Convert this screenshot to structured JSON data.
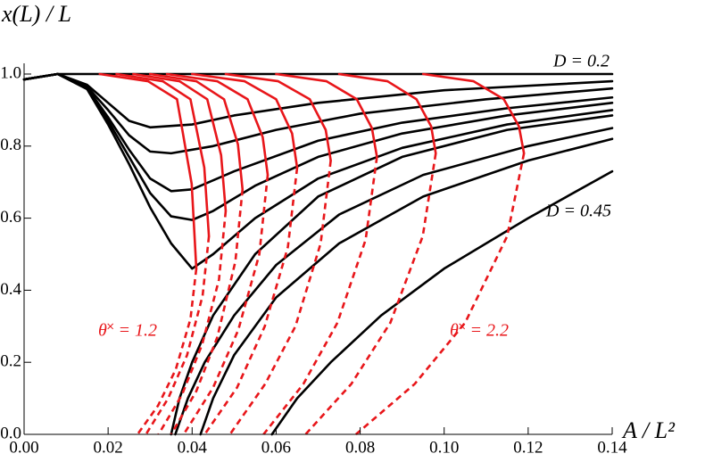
{
  "chart_data": {
    "type": "line",
    "y_label": "x(L) / L",
    "x_label": "A / L²",
    "annotations": [
      "D = 0.2",
      "D = 0.45",
      "θ˟ = 1.2",
      "θ˟ = 2.2"
    ],
    "annotation_colors": [
      "#000000",
      "#000000",
      "#e8161a",
      "#e8161a"
    ],
    "xlim": [
      0,
      0.14
    ],
    "ylim": [
      0,
      1.0
    ],
    "xticks": [
      {
        "value": 0,
        "label": "0.00"
      },
      {
        "value": 0.02,
        "label": "0.02"
      },
      {
        "value": 0.04,
        "label": "0.04"
      },
      {
        "value": 0.06,
        "label": "0.06"
      },
      {
        "value": 0.08,
        "label": "0.08"
      },
      {
        "value": 0.1,
        "label": "0.10"
      },
      {
        "value": 0.12,
        "label": "0.12"
      },
      {
        "value": 0.14,
        "label": "0.14"
      }
    ],
    "yticks": [
      {
        "value": 0,
        "label": "0.0"
      },
      {
        "value": 0.2,
        "label": "0.2"
      },
      {
        "value": 0.4,
        "label": "0.4"
      },
      {
        "value": 0.6,
        "label": "0.6"
      },
      {
        "value": 0.8,
        "label": "0.8"
      },
      {
        "value": 1.0,
        "label": "1.0"
      }
    ],
    "grid": false,
    "series": [
      {
        "color": "#000000",
        "style": "solid",
        "x": [
          0,
          0.008,
          0.02,
          0.05,
          0.1,
          0.14
        ],
        "values": [
          0.985,
          1.0,
          1.0,
          1.0,
          1.0,
          1.0
        ]
      },
      {
        "color": "#000000",
        "style": "solid",
        "x": [
          0,
          0.008,
          0.015,
          0.02,
          0.025,
          0.03,
          0.04,
          0.05,
          0.07,
          0.1,
          0.14
        ],
        "values": [
          0.985,
          1.0,
          0.97,
          0.92,
          0.87,
          0.852,
          0.86,
          0.885,
          0.92,
          0.955,
          0.98
        ]
      },
      {
        "color": "#000000",
        "style": "solid",
        "x": [
          0,
          0.008,
          0.015,
          0.02,
          0.025,
          0.03,
          0.035,
          0.045,
          0.06,
          0.08,
          0.11,
          0.14
        ],
        "values": [
          0.985,
          1.0,
          0.965,
          0.9,
          0.83,
          0.785,
          0.78,
          0.8,
          0.845,
          0.89,
          0.93,
          0.96
        ]
      },
      {
        "color": "#000000",
        "style": "solid",
        "x": [
          0,
          0.008,
          0.015,
          0.02,
          0.025,
          0.03,
          0.035,
          0.04,
          0.05,
          0.07,
          0.09,
          0.115,
          0.14
        ],
        "values": [
          0.985,
          1.0,
          0.962,
          0.88,
          0.79,
          0.71,
          0.675,
          0.68,
          0.73,
          0.815,
          0.865,
          0.905,
          0.935
        ]
      },
      {
        "color": "#000000",
        "style": "solid",
        "x": [
          0,
          0.008,
          0.015,
          0.02,
          0.025,
          0.03,
          0.035,
          0.04,
          0.045,
          0.055,
          0.07,
          0.09,
          0.115,
          0.14
        ],
        "values": [
          0.985,
          1.0,
          0.96,
          0.87,
          0.77,
          0.67,
          0.605,
          0.595,
          0.62,
          0.69,
          0.77,
          0.835,
          0.885,
          0.92
        ]
      },
      {
        "color": "#000000",
        "style": "solid",
        "x": [
          0,
          0.008,
          0.015,
          0.02,
          0.025,
          0.03,
          0.035,
          0.04,
          0.045,
          0.055,
          0.07,
          0.09,
          0.115,
          0.14
        ],
        "values": [
          0.985,
          1.0,
          0.958,
          0.86,
          0.75,
          0.63,
          0.53,
          0.46,
          0.5,
          0.6,
          0.71,
          0.795,
          0.86,
          0.9
        ]
      },
      {
        "color": "#000000",
        "style": "solid",
        "x": [
          0.035,
          0.037,
          0.04,
          0.045,
          0.055,
          0.07,
          0.09,
          0.115,
          0.14
        ],
        "values": [
          0,
          0.1,
          0.2,
          0.33,
          0.5,
          0.66,
          0.77,
          0.845,
          0.885
        ]
      },
      {
        "color": "#000000",
        "style": "solid",
        "x": [
          0.036,
          0.039,
          0.043,
          0.05,
          0.06,
          0.075,
          0.095,
          0.12,
          0.14
        ],
        "values": [
          0,
          0.1,
          0.2,
          0.33,
          0.47,
          0.61,
          0.72,
          0.8,
          0.85
        ]
      },
      {
        "color": "#000000",
        "style": "solid",
        "x": [
          0.042,
          0.045,
          0.05,
          0.06,
          0.075,
          0.095,
          0.12,
          0.14
        ],
        "values": [
          0,
          0.1,
          0.22,
          0.38,
          0.53,
          0.66,
          0.76,
          0.82
        ]
      },
      {
        "color": "#000000",
        "style": "solid",
        "x": [
          0.059,
          0.065,
          0.073,
          0.085,
          0.1,
          0.12,
          0.14
        ],
        "values": [
          0,
          0.1,
          0.2,
          0.33,
          0.46,
          0.6,
          0.73
        ]
      },
      {
        "color": "#e8161a",
        "style": "solid",
        "x": [
          0.018,
          0.0295,
          0.0364,
          0.0399,
          0.041
        ],
        "values": [
          1,
          0.98,
          0.93,
          0.695,
          0.46
        ]
      },
      {
        "color": "#e8161a",
        "style": "dashed",
        "x": [
          0.041,
          0.0396,
          0.0361,
          0.0319,
          0.027
        ],
        "values": [
          0.46,
          0.32,
          0.18,
          0.08,
          0
        ]
      },
      {
        "color": "#e8161a",
        "style": "solid",
        "x": [
          0.022,
          0.033,
          0.0396,
          0.0429,
          0.044
        ],
        "values": [
          1,
          0.98,
          0.93,
          0.74,
          0.55
        ]
      },
      {
        "color": "#e8161a",
        "style": "dashed",
        "x": [
          0.044,
          0.0425,
          0.0388,
          0.0343,
          0.029
        ],
        "values": [
          0.55,
          0.385,
          0.22,
          0.1,
          0
        ]
      },
      {
        "color": "#e8161a",
        "style": "solid",
        "x": [
          0.026,
          0.037,
          0.0436,
          0.0469,
          0.048
        ],
        "values": [
          1,
          0.98,
          0.93,
          0.775,
          0.62
        ]
      },
      {
        "color": "#e8161a",
        "style": "dashed",
        "x": [
          0.048,
          0.0464,
          0.0424,
          0.0376,
          0.032
        ],
        "values": [
          0.62,
          0.43,
          0.25,
          0.11,
          0
        ]
      },
      {
        "color": "#e8161a",
        "style": "solid",
        "x": [
          0.03,
          0.041,
          0.0476,
          0.0509,
          0.052
        ],
        "values": [
          1,
          0.98,
          0.93,
          0.805,
          0.68
        ]
      },
      {
        "color": "#e8161a",
        "style": "dashed",
        "x": [
          0.052,
          0.0503,
          0.046,
          0.041,
          0.035
        ],
        "values": [
          0.68,
          0.48,
          0.27,
          0.12,
          0
        ]
      },
      {
        "color": "#e8161a",
        "style": "solid",
        "x": [
          0.034,
          0.046,
          0.0532,
          0.0568,
          0.058
        ],
        "values": [
          1,
          0.98,
          0.93,
          0.825,
          0.72
        ]
      },
      {
        "color": "#e8161a",
        "style": "dashed",
        "x": [
          0.058,
          0.056,
          0.051,
          0.045,
          0.038
        ],
        "values": [
          0.72,
          0.5,
          0.29,
          0.13,
          0
        ]
      },
      {
        "color": "#e8161a",
        "style": "solid",
        "x": [
          0.04,
          0.0525,
          0.06,
          0.0638,
          0.065
        ],
        "values": [
          1,
          0.98,
          0.93,
          0.835,
          0.74
        ]
      },
      {
        "color": "#e8161a",
        "style": "dashed",
        "x": [
          0.065,
          0.0628,
          0.0573,
          0.0507,
          0.043
        ],
        "values": [
          0.74,
          0.52,
          0.3,
          0.13,
          0
        ]
      },
      {
        "color": "#e8161a",
        "style": "solid",
        "x": [
          0.048,
          0.0605,
          0.068,
          0.0718,
          0.073
        ],
        "values": [
          1,
          0.98,
          0.93,
          0.845,
          0.76
        ]
      },
      {
        "color": "#e8161a",
        "style": "dashed",
        "x": [
          0.073,
          0.0706,
          0.0646,
          0.0574,
          0.049
        ],
        "values": [
          0.76,
          0.53,
          0.3,
          0.14,
          0
        ]
      },
      {
        "color": "#e8161a",
        "style": "solid",
        "x": [
          0.06,
          0.072,
          0.0792,
          0.0828,
          0.084
        ],
        "values": [
          1,
          0.98,
          0.93,
          0.85,
          0.77
        ]
      },
      {
        "color": "#e8161a",
        "style": "dashed",
        "x": [
          0.084,
          0.0813,
          0.0746,
          0.0665,
          0.057
        ],
        "values": [
          0.77,
          0.54,
          0.31,
          0.14,
          0
        ]
      },
      {
        "color": "#e8161a",
        "style": "solid",
        "x": [
          0.075,
          0.0865,
          0.0934,
          0.0969,
          0.098
        ],
        "values": [
          1,
          0.98,
          0.93,
          0.855,
          0.78
        ]
      },
      {
        "color": "#e8161a",
        "style": "dashed",
        "x": [
          0.098,
          0.0949,
          0.0872,
          0.0779,
          0.067
        ],
        "values": [
          0.78,
          0.55,
          0.31,
          0.14,
          0
        ]
      },
      {
        "color": "#e8161a",
        "style": "solid",
        "x": [
          0.095,
          0.107,
          0.1142,
          0.1178,
          0.119
        ],
        "values": [
          1,
          0.98,
          0.93,
          0.855,
          0.78
        ]
      },
      {
        "color": "#e8161a",
        "style": "dashed",
        "x": [
          0.119,
          0.115,
          0.105,
          0.093,
          0.079
        ],
        "values": [
          0.78,
          0.55,
          0.31,
          0.14,
          0
        ]
      }
    ]
  }
}
